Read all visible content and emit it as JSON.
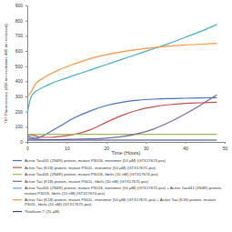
{
  "chart_data": {
    "type": "line",
    "x_label": "Time (Hours)",
    "y_label": "ThT Fluorescence (450 nm excitation, 485 nm emission)",
    "x": [
      0,
      1,
      2,
      4,
      6,
      8,
      12,
      16,
      20,
      24,
      28,
      32,
      36,
      40,
      44,
      48
    ],
    "xlim": [
      0,
      50
    ],
    "xticks": [
      0,
      10,
      20,
      30,
      40,
      50
    ],
    "ylim": [
      0,
      900
    ],
    "yticks": [
      0,
      100,
      200,
      300,
      400,
      500,
      600,
      700,
      800,
      900
    ],
    "grid": false,
    "legend": "bottom",
    "series": [
      {
        "name": "Active Tau441 (2N4R) protein, mutant P301S, monomer (50 μM) (GTX17673-pro)",
        "color": "#4472c4",
        "values": [
          40,
          30,
          25,
          40,
          70,
          100,
          160,
          205,
          240,
          262,
          275,
          282,
          286,
          288,
          290,
          292
        ]
      },
      {
        "name": "Active Tau (K18) protein, mutant P301L, monomer (50 μM) (GTX17671-pro)",
        "color": "#c0504d",
        "values": [
          50,
          45,
          40,
          30,
          30,
          35,
          50,
          80,
          130,
          175,
          210,
          232,
          246,
          254,
          258,
          262
        ]
      },
      {
        "name": "Active Tau441 (2N4R) protein, mutant P301S, fibrils (10 nM) (GTX17674-pro)",
        "color": "#9bbb59",
        "values": [
          45,
          50,
          50,
          50,
          50,
          50,
          50,
          50,
          50,
          50,
          50,
          50,
          50,
          50,
          50,
          50
        ]
      },
      {
        "name": "Active Tau (K18) protein, mutant P301L, fibrils (10 nM) (GTX17675-pro)",
        "color": "#8064a2",
        "values": [
          25,
          20,
          18,
          15,
          15,
          15,
          18,
          20,
          25,
          35,
          55,
          85,
          130,
          185,
          245,
          310
        ]
      },
      {
        "name": "Active Tau441 (2N4R) protein, mutant P301S, monomer (50 μM) (GTX17672-pro) + Active Tau441 (2N4R) protein, mutant P301S, fibrils (10 nM) (GTX17674-pro)",
        "color": "#4bacc6",
        "values": [
          190,
          300,
          330,
          360,
          385,
          405,
          440,
          475,
          510,
          545,
          580,
          615,
          650,
          690,
          730,
          775
        ]
      },
      {
        "name": "Active Tau (K18) protein, mutant P301L, monomer (50 μM) (GTX17671-pro) + Active Tau (K18) protein, mutant P301L, fibrils (10 nM) (GTX17675-pro)",
        "color": "#f79646",
        "values": [
          300,
          330,
          380,
          420,
          450,
          475,
          515,
          550,
          575,
          595,
          610,
          622,
          632,
          640,
          645,
          650
        ]
      },
      {
        "name": "Thioflavin T (25 μM)",
        "color": "#2c4d75",
        "values": [
          12,
          12,
          12,
          12,
          12,
          12,
          12,
          12,
          12,
          12,
          12,
          12,
          12,
          12,
          12,
          12
        ]
      }
    ]
  }
}
